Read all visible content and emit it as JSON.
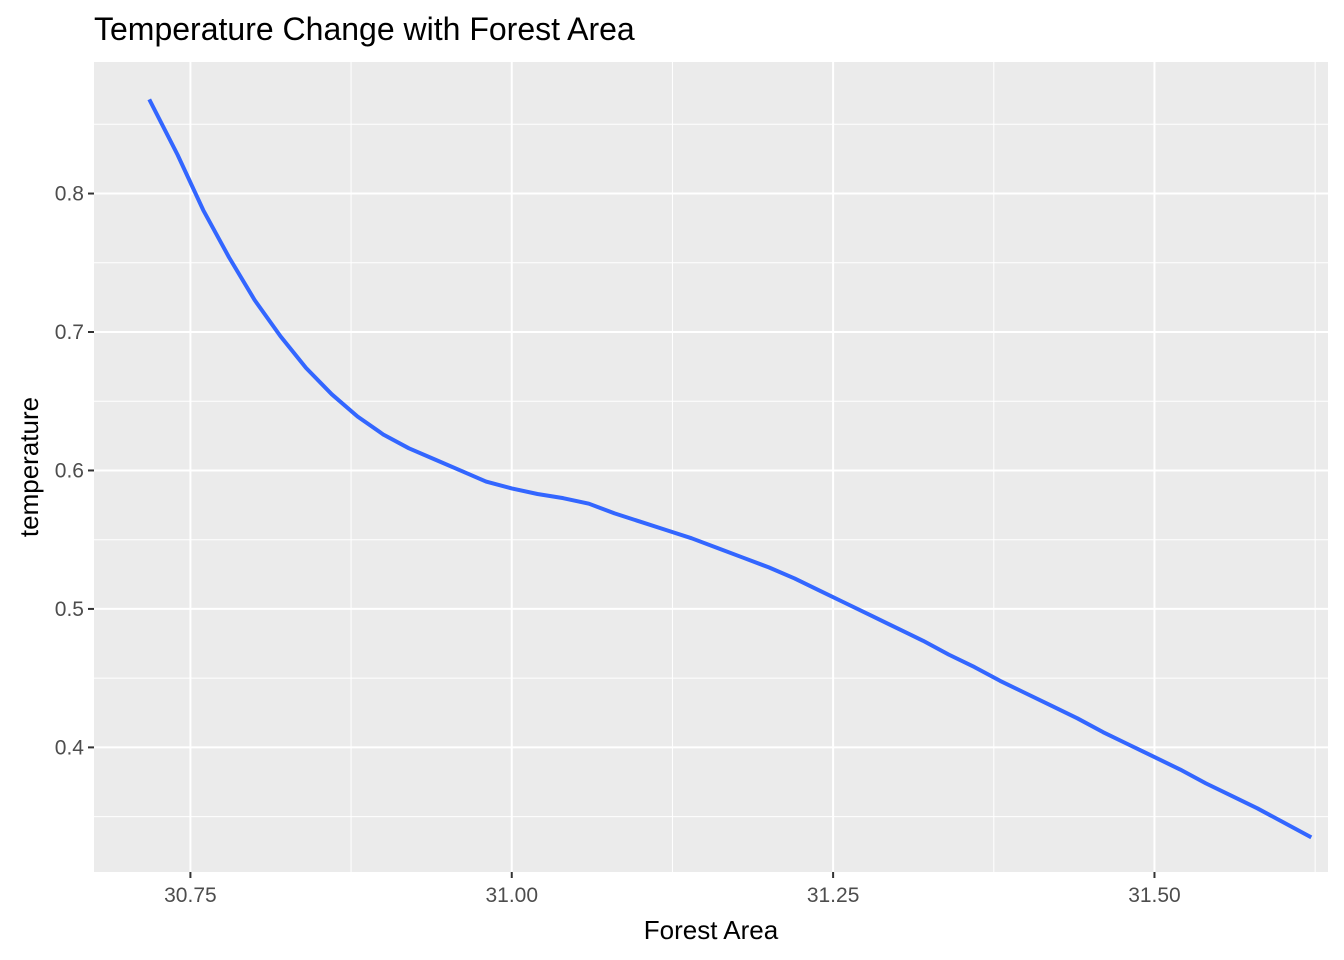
{
  "chart_data": {
    "type": "line",
    "title": "Temperature Change with Forest Area",
    "xlabel": "Forest Area",
    "ylabel": "temperature",
    "xlim": [
      30.675,
      31.635
    ],
    "ylim": [
      0.31,
      0.895
    ],
    "x_ticks": [
      30.75,
      31.0,
      31.25,
      31.5
    ],
    "x_tick_labels": [
      "30.75",
      "31.00",
      "31.25",
      "31.50"
    ],
    "y_ticks": [
      0.4,
      0.5,
      0.6,
      0.7,
      0.8
    ],
    "y_tick_labels": [
      "0.4",
      "0.5",
      "0.6",
      "0.7",
      "0.8"
    ],
    "grid": true,
    "background_color": "#EBEBEB",
    "grid_color": "#FFFFFF",
    "line_color": "#3366FF",
    "series": [
      {
        "x": [
          30.718,
          30.74,
          30.76,
          30.78,
          30.8,
          30.82,
          30.84,
          30.86,
          30.88,
          30.9,
          30.92,
          30.94,
          30.96,
          30.98,
          31.0,
          31.02,
          31.04,
          31.06,
          31.08,
          31.1,
          31.12,
          31.14,
          31.16,
          31.18,
          31.2,
          31.22,
          31.24,
          31.26,
          31.28,
          31.3,
          31.32,
          31.34,
          31.36,
          31.38,
          31.4,
          31.42,
          31.44,
          31.46,
          31.48,
          31.5,
          31.52,
          31.54,
          31.56,
          31.58,
          31.6,
          31.622
        ],
        "y": [
          0.868,
          0.828,
          0.788,
          0.754,
          0.723,
          0.697,
          0.674,
          0.655,
          0.639,
          0.626,
          0.616,
          0.608,
          0.6,
          0.592,
          0.587,
          0.583,
          0.58,
          0.576,
          0.569,
          0.563,
          0.557,
          0.551,
          0.544,
          0.537,
          0.53,
          0.522,
          0.513,
          0.504,
          0.495,
          0.486,
          0.477,
          0.467,
          0.458,
          0.448,
          0.439,
          0.43,
          0.421,
          0.411,
          0.402,
          0.393,
          0.384,
          0.374,
          0.365,
          0.356,
          0.346,
          0.335
        ]
      }
    ]
  }
}
